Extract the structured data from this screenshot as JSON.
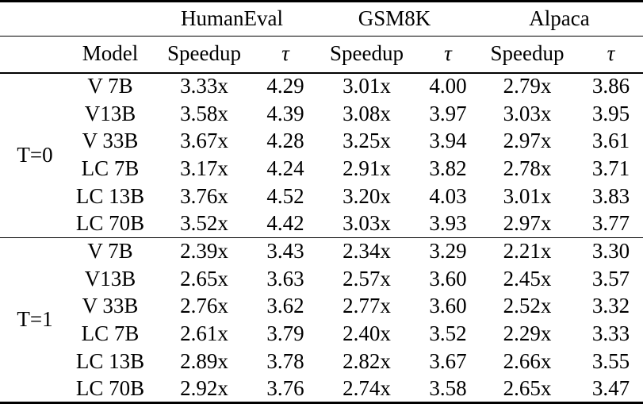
{
  "table": {
    "benchmarks": [
      "HumanEval",
      "GSM8K",
      "Alpaca"
    ],
    "headers": {
      "model": "Model",
      "speedup": "Speedup",
      "tau": "τ"
    },
    "sections": [
      {
        "label": "T=0",
        "rows": [
          {
            "model": "V 7B",
            "values": [
              "3.33x",
              "4.29",
              "3.01x",
              "4.00",
              "2.79x",
              "3.86"
            ]
          },
          {
            "model": "V13B",
            "values": [
              "3.58x",
              "4.39",
              "3.08x",
              "3.97",
              "3.03x",
              "3.95"
            ]
          },
          {
            "model": "V 33B",
            "values": [
              "3.67x",
              "4.28",
              "3.25x",
              "3.94",
              "2.97x",
              "3.61"
            ]
          },
          {
            "model": "LC 7B",
            "values": [
              "3.17x",
              "4.24",
              "2.91x",
              "3.82",
              "2.78x",
              "3.71"
            ]
          },
          {
            "model": "LC 13B",
            "values": [
              "3.76x",
              "4.52",
              "3.20x",
              "4.03",
              "3.01x",
              "3.83"
            ]
          },
          {
            "model": "LC 70B",
            "values": [
              "3.52x",
              "4.42",
              "3.03x",
              "3.93",
              "2.97x",
              "3.77"
            ]
          }
        ]
      },
      {
        "label": "T=1",
        "rows": [
          {
            "model": "V 7B",
            "values": [
              "2.39x",
              "3.43",
              "2.34x",
              "3.29",
              "2.21x",
              "3.30"
            ]
          },
          {
            "model": "V13B",
            "values": [
              "2.65x",
              "3.63",
              "2.57x",
              "3.60",
              "2.45x",
              "3.57"
            ]
          },
          {
            "model": "V 33B",
            "values": [
              "2.76x",
              "3.62",
              "2.77x",
              "3.60",
              "2.52x",
              "3.32"
            ]
          },
          {
            "model": "LC 7B",
            "values": [
              "2.61x",
              "3.79",
              "2.40x",
              "3.52",
              "2.29x",
              "3.33"
            ]
          },
          {
            "model": "LC 13B",
            "values": [
              "2.89x",
              "3.78",
              "2.82x",
              "3.67",
              "2.66x",
              "3.55"
            ]
          },
          {
            "model": "LC 70B",
            "values": [
              "2.92x",
              "3.76",
              "2.74x",
              "3.58",
              "2.65x",
              "3.47"
            ]
          }
        ]
      }
    ]
  }
}
